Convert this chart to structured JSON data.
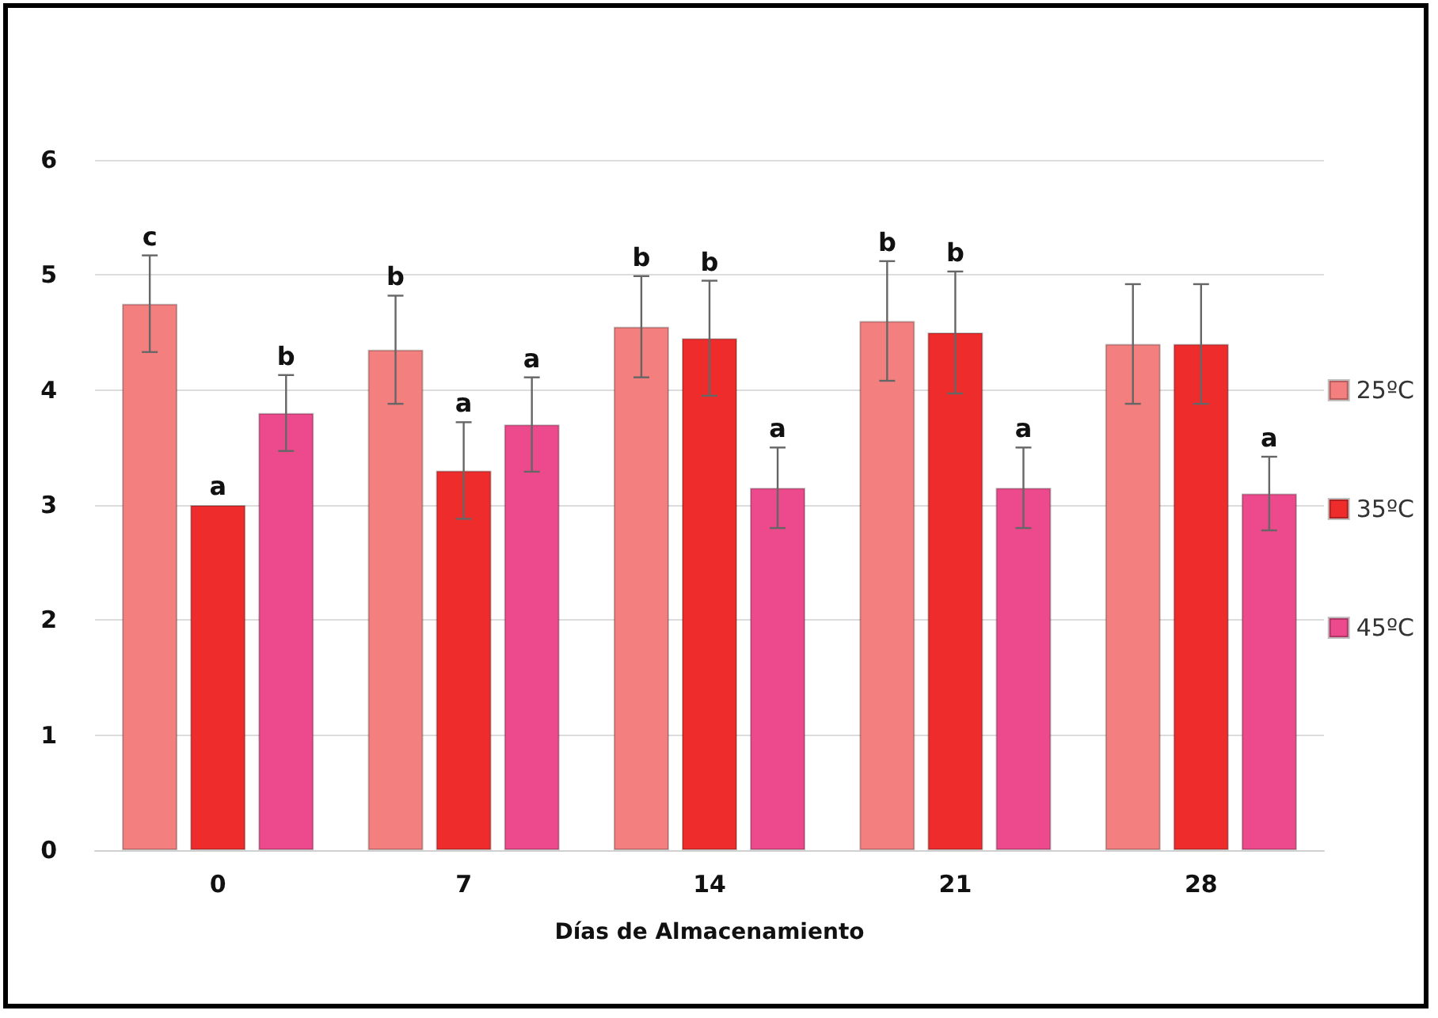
{
  "chart_data": {
    "type": "bar",
    "xlabel": "Días de Almacenamiento",
    "categories": [
      "0",
      "7",
      "14",
      "21",
      "28"
    ],
    "series": [
      {
        "name": "25ºC",
        "color": "#f47f7f",
        "values": [
          4.75,
          4.35,
          4.55,
          4.6,
          4.4
        ],
        "errors": [
          0.42,
          0.47,
          0.44,
          0.52,
          0.52
        ],
        "value_labels": [
          "c",
          "b",
          "b",
          "b",
          null
        ]
      },
      {
        "name": "35ºC",
        "color": "#ee2c2c",
        "values": [
          3.0,
          3.3,
          4.45,
          4.5,
          4.4
        ],
        "errors": [
          null,
          0.42,
          0.5,
          0.53,
          0.52
        ],
        "value_labels": [
          "a",
          "a",
          "b",
          "b",
          null
        ]
      },
      {
        "name": "45ºC",
        "color": "#ec4a8c",
        "values": [
          3.8,
          3.7,
          3.15,
          3.15,
          3.1
        ],
        "errors": [
          0.33,
          0.41,
          0.35,
          0.35,
          0.32
        ],
        "value_labels": [
          "b",
          "a",
          "a",
          "a",
          "a"
        ]
      }
    ],
    "ylim": [
      0,
      6
    ],
    "yticks": [
      0,
      1,
      2,
      3,
      4,
      5,
      6
    ],
    "grid": "y",
    "legend": "right"
  }
}
